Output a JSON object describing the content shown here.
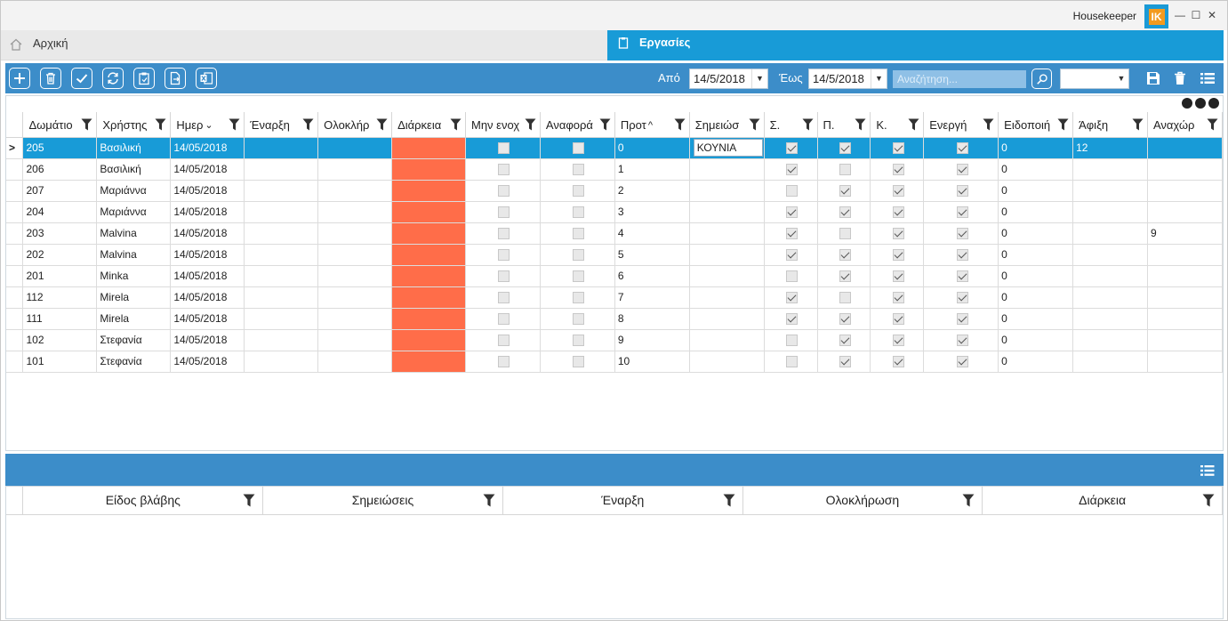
{
  "titlebar": {
    "app_title": "Housekeeper",
    "logo_text": "IK",
    "minimize": "—",
    "maximize": "☐",
    "close": "✕"
  },
  "tabs": {
    "home_label": "Αρχική",
    "tasks_label": "Εργασίες"
  },
  "toolbar": {
    "buttons": [
      "add-icon",
      "delete-icon",
      "confirm-icon",
      "refresh-icon",
      "paste-icon",
      "export-icon",
      "excel-icon"
    ],
    "from_label": "Από",
    "from_date": "14/5/2018",
    "to_label": "Έως",
    "to_date": "14/5/2018",
    "search_placeholder": "Αναζήτηση...",
    "layout_value": ""
  },
  "grid": {
    "columns": [
      "Δωμάτιο",
      "Χρήστης",
      "Ημερ",
      "Έναρξη",
      "Ολοκλήρ",
      "Διάρκεια",
      "Μην ενοχ",
      "Αναφορά",
      "Προτ",
      "Σημειώσ",
      "Σ.",
      "Π.",
      "Κ.",
      "Ενεργή",
      "Ειδοποιή",
      "Άφιξη",
      "Αναχώρ"
    ],
    "rows": [
      {
        "room": "205",
        "user": "Βασιλική",
        "date": "14/05/2018",
        "start": "",
        "end": "",
        "dnd": false,
        "report": false,
        "prio": "0",
        "notes": "ΚΟΥΝΙΑ",
        "s": true,
        "p": true,
        "k": true,
        "active": true,
        "notify": "0",
        "arrival": "12",
        "departure": "",
        "selected": true
      },
      {
        "room": "206",
        "user": "Βασιλική",
        "date": "14/05/2018",
        "start": "",
        "end": "",
        "dnd": false,
        "report": false,
        "prio": "1",
        "notes": "",
        "s": true,
        "p": false,
        "k": true,
        "active": true,
        "notify": "0",
        "arrival": "",
        "departure": ""
      },
      {
        "room": "207",
        "user": "Μαριάννα",
        "date": "14/05/2018",
        "start": "",
        "end": "",
        "dnd": false,
        "report": false,
        "prio": "2",
        "notes": "",
        "s": false,
        "p": true,
        "k": true,
        "active": true,
        "notify": "0",
        "arrival": "",
        "departure": ""
      },
      {
        "room": "204",
        "user": "Μαριάννα",
        "date": "14/05/2018",
        "start": "",
        "end": "",
        "dnd": false,
        "report": false,
        "prio": "3",
        "notes": "",
        "s": true,
        "p": true,
        "k": true,
        "active": true,
        "notify": "0",
        "arrival": "",
        "departure": ""
      },
      {
        "room": "203",
        "user": "Malvina",
        "date": "14/05/2018",
        "start": "",
        "end": "",
        "dnd": false,
        "report": false,
        "prio": "4",
        "notes": "",
        "s": true,
        "p": false,
        "k": true,
        "active": true,
        "notify": "0",
        "arrival": "",
        "departure": "9"
      },
      {
        "room": "202",
        "user": "Malvina",
        "date": "14/05/2018",
        "start": "",
        "end": "",
        "dnd": false,
        "report": false,
        "prio": "5",
        "notes": "",
        "s": true,
        "p": true,
        "k": true,
        "active": true,
        "notify": "0",
        "arrival": "",
        "departure": ""
      },
      {
        "room": "201",
        "user": "Minka",
        "date": "14/05/2018",
        "start": "",
        "end": "",
        "dnd": false,
        "report": false,
        "prio": "6",
        "notes": "",
        "s": false,
        "p": true,
        "k": true,
        "active": true,
        "notify": "0",
        "arrival": "",
        "departure": ""
      },
      {
        "room": "112",
        "user": "Mirela",
        "date": "14/05/2018",
        "start": "",
        "end": "",
        "dnd": false,
        "report": false,
        "prio": "7",
        "notes": "",
        "s": true,
        "p": false,
        "k": true,
        "active": true,
        "notify": "0",
        "arrival": "",
        "departure": ""
      },
      {
        "room": "111",
        "user": "Mirela",
        "date": "14/05/2018",
        "start": "",
        "end": "",
        "dnd": false,
        "report": false,
        "prio": "8",
        "notes": "",
        "s": true,
        "p": true,
        "k": true,
        "active": true,
        "notify": "0",
        "arrival": "",
        "departure": ""
      },
      {
        "room": "102",
        "user": "Στεφανία",
        "date": "14/05/2018",
        "start": "",
        "end": "",
        "dnd": false,
        "report": false,
        "prio": "9",
        "notes": "",
        "s": false,
        "p": true,
        "k": true,
        "active": true,
        "notify": "0",
        "arrival": "",
        "departure": ""
      },
      {
        "room": "101",
        "user": "Στεφανία",
        "date": "14/05/2018",
        "start": "",
        "end": "",
        "dnd": false,
        "report": false,
        "prio": "10",
        "notes": "",
        "s": false,
        "p": true,
        "k": true,
        "active": true,
        "notify": "0",
        "arrival": "",
        "departure": ""
      }
    ],
    "duration_color": "#ff6d49",
    "selected_color": "#189bd7"
  },
  "detail": {
    "columns": [
      "Είδος βλάβης",
      "Σημειώσεις",
      "Έναρξη",
      "Ολοκλήρωση",
      "Διάρκεια"
    ]
  },
  "colors": {
    "accent": "#189bd7",
    "toolbar": "#3c8dc9",
    "logo": "#f39a1e"
  }
}
